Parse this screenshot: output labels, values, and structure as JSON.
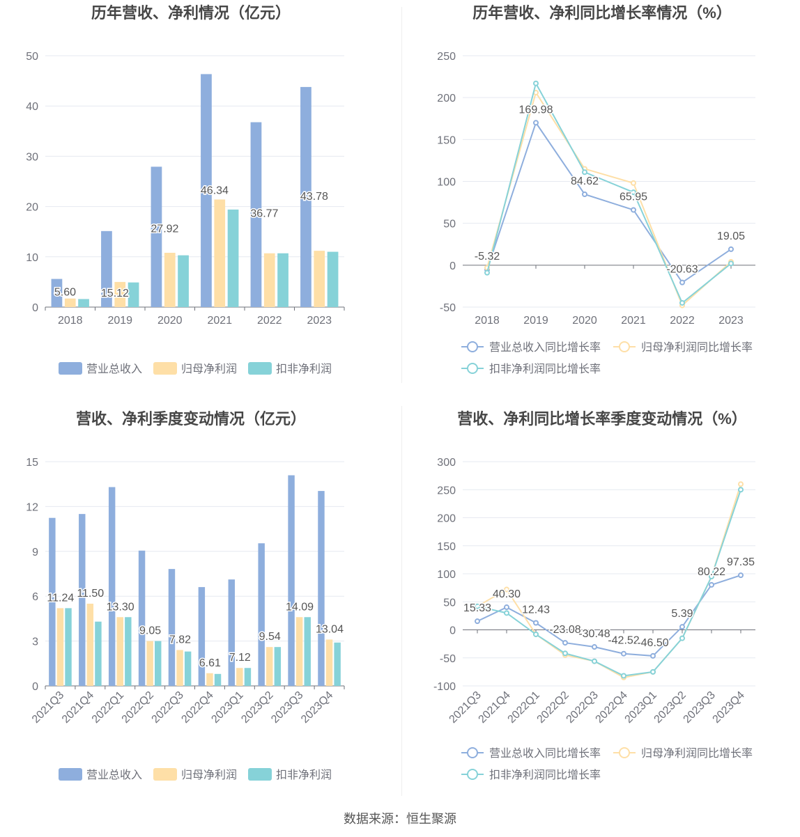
{
  "source_text": "数据来源：恒生聚源",
  "colors": {
    "revenue": "#8eaedd",
    "parent_profit": "#fedfa7",
    "deducted_profit": "#86d2d8",
    "grid": "#e6e9f0",
    "axis": "#6e7079",
    "label": "#555555",
    "title": "#464646"
  },
  "chart_data": [
    {
      "type": "bar",
      "title": "历年营收、净利情况（亿元）",
      "categories": [
        "2018",
        "2019",
        "2020",
        "2021",
        "2022",
        "2023"
      ],
      "ylim": [
        0,
        50
      ],
      "yticks": [
        0,
        10,
        20,
        30,
        40,
        50
      ],
      "grid": true,
      "legend_position": "bottom",
      "series": [
        {
          "name": "营业总收入",
          "values": [
            5.6,
            15.12,
            27.92,
            46.34,
            36.77,
            43.78
          ]
        },
        {
          "name": "归母净利润",
          "values": [
            1.7,
            5.0,
            10.8,
            21.4,
            10.7,
            11.2
          ]
        },
        {
          "name": "扣非净利润",
          "values": [
            1.6,
            4.9,
            10.3,
            19.4,
            10.7,
            11.0
          ]
        }
      ],
      "data_labels": [
        "5.60",
        "15.12",
        "27.92",
        "46.34",
        "36.77",
        "43.78"
      ]
    },
    {
      "type": "line",
      "title": "历年营收、净利同比增长率情况（%）",
      "categories": [
        "2018",
        "2019",
        "2020",
        "2021",
        "2022",
        "2023"
      ],
      "ylim": [
        -50,
        250
      ],
      "yticks": [
        -50,
        0,
        50,
        100,
        150,
        200,
        250
      ],
      "grid": true,
      "legend_position": "bottom",
      "series": [
        {
          "name": "营业总收入同比增长率",
          "values": [
            -5.32,
            169.98,
            84.62,
            65.95,
            -20.63,
            19.05
          ]
        },
        {
          "name": "归母净利润同比增长率",
          "values": [
            -3,
            206,
            115,
            98,
            -48,
            4
          ]
        },
        {
          "name": "扣非净利润同比增长率",
          "values": [
            -9,
            217,
            111,
            87,
            -45,
            2
          ]
        }
      ],
      "data_labels": [
        "-5.32",
        "169.98",
        "84.62",
        "65.95",
        "-20.63",
        "19.05"
      ]
    },
    {
      "type": "bar",
      "title": "营收、净利季度变动情况（亿元）",
      "categories": [
        "2021Q3",
        "2021Q4",
        "2022Q1",
        "2022Q2",
        "2022Q3",
        "2022Q4",
        "2023Q1",
        "2023Q2",
        "2023Q3",
        "2023Q4"
      ],
      "ylim": [
        0,
        15
      ],
      "yticks": [
        0,
        3,
        6,
        9,
        12,
        15
      ],
      "grid": true,
      "legend_position": "bottom",
      "series": [
        {
          "name": "营业总收入",
          "values": [
            11.24,
            11.5,
            13.3,
            9.05,
            7.82,
            6.61,
            7.12,
            9.54,
            14.09,
            13.04
          ]
        },
        {
          "name": "归母净利润",
          "values": [
            5.2,
            5.5,
            4.6,
            3.0,
            2.4,
            0.85,
            1.2,
            2.6,
            4.6,
            3.1
          ]
        },
        {
          "name": "扣非净利润",
          "values": [
            5.2,
            4.3,
            4.6,
            3.0,
            2.3,
            0.8,
            1.2,
            2.6,
            4.6,
            2.9
          ]
        }
      ],
      "data_labels": [
        "11.24",
        "11.50",
        "13.30",
        "9.05",
        "7.82",
        "6.61",
        "7.12",
        "9.54",
        "14.09",
        "13.04"
      ]
    },
    {
      "type": "line",
      "title": "营收、净利同比增长率季度变动情况（%）",
      "categories": [
        "2021Q3",
        "2021Q4",
        "2022Q1",
        "2022Q2",
        "2022Q3",
        "2022Q4",
        "2023Q1",
        "2023Q2",
        "2023Q3",
        "2023Q4"
      ],
      "ylim": [
        -100,
        300
      ],
      "yticks": [
        -100,
        -50,
        0,
        50,
        100,
        150,
        200,
        250,
        300
      ],
      "grid": true,
      "legend_position": "bottom",
      "series": [
        {
          "name": "营业总收入同比增长率",
          "values": [
            15.33,
            40.3,
            12.43,
            -23.08,
            -30.48,
            -42.52,
            -46.5,
            5.39,
            80.22,
            97.35
          ]
        },
        {
          "name": "归母净利润同比增长率",
          "values": [
            42,
            72,
            -8,
            -45,
            -56,
            -85,
            -75,
            -15,
            95,
            260
          ]
        },
        {
          "name": "扣非净利润同比增长率",
          "values": [
            42,
            30,
            -8,
            -42,
            -56,
            -82,
            -75,
            -15,
            95,
            250
          ]
        }
      ],
      "data_labels": [
        "15.33",
        "40.30",
        "12.43",
        "-23.08",
        "-30.48",
        "-42.52",
        "-46.50",
        "5.39",
        "80.22",
        "97.35"
      ]
    }
  ]
}
